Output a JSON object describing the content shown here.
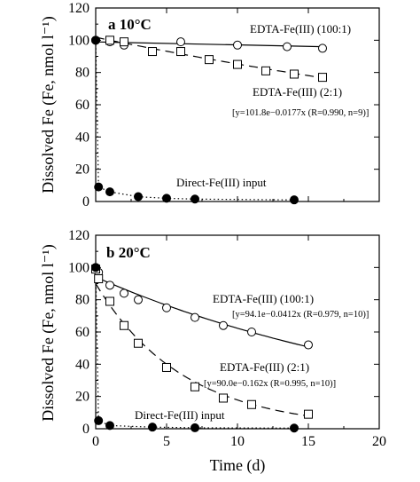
{
  "figure": {
    "ylabel": "Dissolved Fe (Fe, nmol l⁻¹)",
    "xlabel": "Time (d)"
  },
  "chart_data": [
    {
      "type": "line",
      "panel_label": "a 10°C",
      "xlim": [
        0,
        20
      ],
      "ylim": [
        0,
        120
      ],
      "xticks": [
        "0",
        "5",
        "10",
        "15",
        "20"
      ],
      "yticks": [
        "0",
        "20",
        "40",
        "60",
        "80",
        "100",
        "120"
      ],
      "xtick_labels_shown": false,
      "ylabel": "Dissolved Fe (Fe, nmol l⁻¹)",
      "series": [
        {
          "name": "EDTA-Fe(III) (100:1)",
          "marker": "open-circle",
          "points": [
            [
              0,
              100
            ],
            [
              1,
              99
            ],
            [
              2,
              97
            ],
            [
              6,
              99
            ],
            [
              10,
              97
            ],
            [
              13.5,
              96
            ],
            [
              16,
              95
            ]
          ],
          "fit": {
            "style": "solid",
            "x": [
              0,
              16
            ],
            "y": [
              99,
              96
            ]
          }
        },
        {
          "name": "EDTA-Fe(III) (2:1)",
          "marker": "open-square",
          "points": [
            [
              1,
              100
            ],
            [
              2,
              99
            ],
            [
              4,
              93
            ],
            [
              6,
              93
            ],
            [
              8,
              88
            ],
            [
              10,
              85
            ],
            [
              12,
              81
            ],
            [
              14,
              79
            ],
            [
              16,
              77
            ]
          ],
          "fit": {
            "style": "dashed",
            "equation_model": "exponential",
            "a": 101.8,
            "b": 0.0177,
            "x": [
              0,
              16
            ]
          }
        },
        {
          "name": "Direct-Fe(III) input",
          "marker": "filled-circle",
          "points": [
            [
              0,
              100
            ],
            [
              0.2,
              9
            ],
            [
              1,
              6
            ],
            [
              3,
              3
            ],
            [
              5,
              2
            ],
            [
              7,
              1.5
            ],
            [
              14,
              1
            ]
          ],
          "fit": {
            "style": "dotted",
            "x": [
              0,
              0.2,
              1,
              3,
              5,
              7,
              14
            ],
            "y": [
              100,
              9,
              6,
              3,
              2,
              1.5,
              1
            ]
          }
        }
      ],
      "annotations": {
        "series1_label": "EDTA-Fe(III) (100:1)",
        "series2_label": "EDTA-Fe(III) (2:1)",
        "series2_equation": "[y=101.8e−0.0177x (R=0.990, n=9)]",
        "series3_label": "Direct-Fe(III) input"
      }
    },
    {
      "type": "line",
      "panel_label": "b 20°C",
      "xlim": [
        0,
        20
      ],
      "ylim": [
        0,
        120
      ],
      "xticks": [
        "0",
        "5",
        "10",
        "15",
        "20"
      ],
      "yticks": [
        "0",
        "20",
        "40",
        "60",
        "80",
        "100",
        "120"
      ],
      "xtick_labels_shown": true,
      "xlabel": "Time (d)",
      "ylabel": "Dissolved Fe (Fe, nmol l⁻¹)",
      "series": [
        {
          "name": "EDTA-Fe(III) (100:1)",
          "marker": "open-circle",
          "points": [
            [
              0,
              100
            ],
            [
              0.2,
              97
            ],
            [
              1,
              89
            ],
            [
              2,
              84
            ],
            [
              3,
              80
            ],
            [
              5,
              75
            ],
            [
              7,
              69
            ],
            [
              9,
              64
            ],
            [
              11,
              60
            ],
            [
              15,
              52
            ]
          ],
          "fit": {
            "style": "solid",
            "equation_model": "exponential",
            "a": 94.1,
            "b": 0.0412,
            "x": [
              0,
              15
            ]
          }
        },
        {
          "name": "EDTA-Fe(III) (2:1)",
          "marker": "open-square",
          "points": [
            [
              0,
              99
            ],
            [
              0.2,
              93
            ],
            [
              1,
              79
            ],
            [
              2,
              64
            ],
            [
              3,
              53
            ],
            [
              5,
              38
            ],
            [
              7,
              26
            ],
            [
              9,
              19
            ],
            [
              11,
              15
            ],
            [
              15,
              9
            ]
          ],
          "fit": {
            "style": "dashed",
            "equation_model": "exponential",
            "a": 90.0,
            "b": 0.162,
            "x": [
              0,
              15
            ]
          }
        },
        {
          "name": "Direct-Fe(III) input",
          "marker": "filled-circle",
          "points": [
            [
              0,
              100
            ],
            [
              0.2,
              5
            ],
            [
              1,
              2
            ],
            [
              4,
              1
            ],
            [
              7,
              0.6
            ],
            [
              14,
              0.4
            ]
          ],
          "fit": {
            "style": "dotted",
            "x": [
              0,
              0.2,
              1,
              4,
              7,
              14
            ],
            "y": [
              100,
              5,
              2,
              1,
              0.6,
              0.4
            ]
          }
        }
      ],
      "annotations": {
        "series1_label": "EDTA-Fe(III) (100:1)",
        "series1_equation": "[y=94.1e−0.0412x (R=0.979, n=10)]",
        "series2_label": "EDTA-Fe(III) (2:1)",
        "series2_equation": "[y=90.0e−0.162x (R=0.995, n=10)]",
        "series3_label": "Direct-Fe(III) input"
      }
    }
  ]
}
